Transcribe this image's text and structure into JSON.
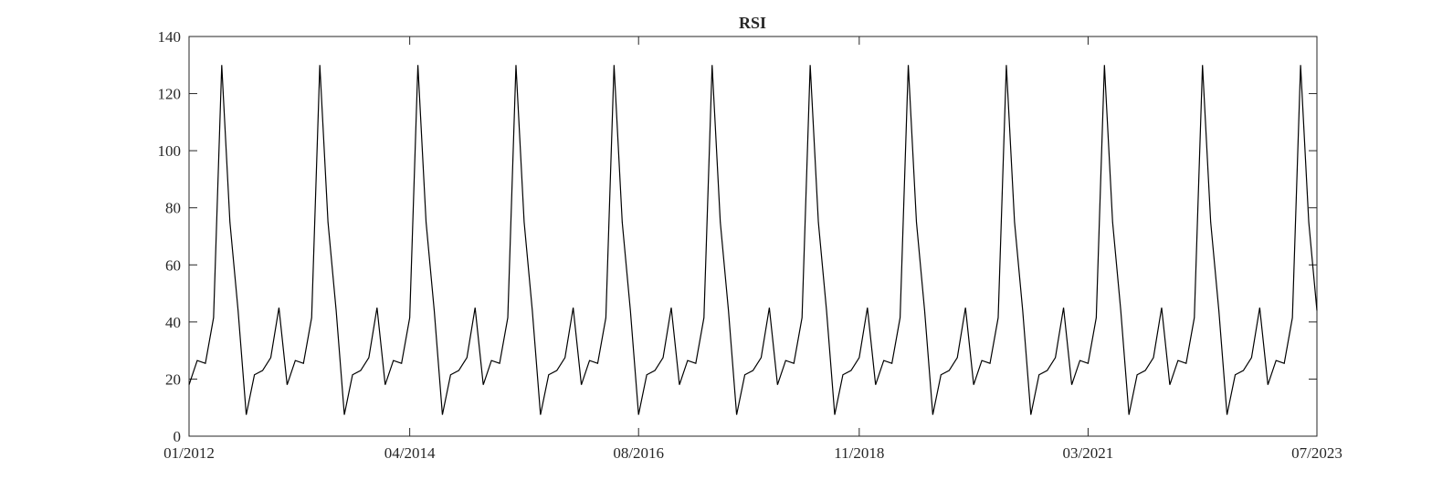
{
  "chart_data": {
    "type": "line",
    "title": "RSI",
    "xlabel": "",
    "ylabel": "",
    "x_range": [
      "01/2012",
      "07/2023"
    ],
    "ylim": [
      0,
      140
    ],
    "x_ticks": [
      "01/2012",
      "04/2014",
      "08/2016",
      "11/2018",
      "03/2021",
      "07/2023"
    ],
    "y_ticks": [
      0,
      20,
      40,
      60,
      80,
      100,
      120,
      140
    ],
    "grid": false,
    "legend": "none",
    "line_color": "#000000",
    "series": [
      {
        "x_start": "01/2012",
        "x_step": "monthly",
        "values": [
          18,
          26.5,
          25.5,
          41.5,
          130,
          75,
          44,
          7.5,
          21.5,
          23,
          27.5,
          45,
          18,
          26.5,
          25.5,
          41.5,
          130,
          75,
          44,
          7.5,
          21.5,
          23,
          27.5,
          45,
          18,
          26.5,
          25.5,
          41.5,
          130,
          75,
          44,
          7.5,
          21.5,
          23,
          27.5,
          45,
          18,
          26.5,
          25.5,
          41.5,
          130,
          75,
          44,
          7.5,
          21.5,
          23,
          27.5,
          45,
          18,
          26.5,
          25.5,
          41.5,
          130,
          75,
          44,
          7.5,
          21.5,
          23,
          27.5,
          45,
          18,
          26.5,
          25.5,
          41.5,
          130,
          75,
          44,
          7.5,
          21.5,
          23,
          27.5,
          45,
          18,
          26.5,
          25.5,
          41.5,
          130,
          75,
          44,
          7.5,
          21.5,
          23,
          27.5,
          45,
          18,
          26.5,
          25.5,
          41.5,
          130,
          75,
          44,
          7.5,
          21.5,
          23,
          27.5,
          45,
          18,
          26.5,
          25.5,
          41.5,
          130,
          75,
          44,
          7.5,
          21.5,
          23,
          27.5,
          45,
          18,
          26.5,
          25.5,
          41.5,
          130,
          75,
          44,
          7.5,
          21.5,
          23,
          27.5,
          45,
          18,
          26.5,
          25.5,
          41.5,
          130,
          75,
          44,
          7.5,
          21.5,
          23,
          27.5,
          45,
          18,
          26.5,
          25.5,
          41.5,
          130,
          75,
          44
        ]
      }
    ]
  }
}
